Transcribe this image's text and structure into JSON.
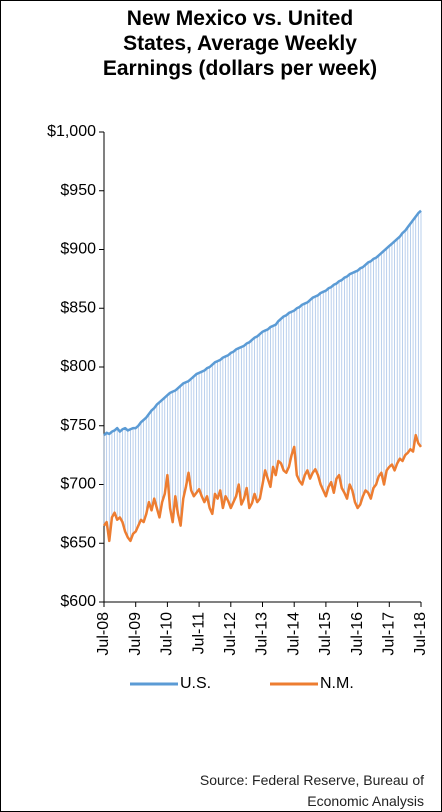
{
  "chart_data": {
    "type": "line",
    "title": "New Mexico vs. United States, Average Weekly Earnings  (dollars per week)",
    "source": "Source: Federal Reserve, Bureau of Economic Analysis",
    "categories": [
      "Jul-08",
      null,
      null,
      null,
      null,
      null,
      null,
      null,
      null,
      null,
      null,
      null,
      "Jul-09",
      null,
      null,
      null,
      null,
      null,
      null,
      null,
      null,
      null,
      null,
      null,
      "Jul-10",
      null,
      null,
      null,
      null,
      null,
      null,
      null,
      null,
      null,
      null,
      null,
      "Jul-11",
      null,
      null,
      null,
      null,
      null,
      null,
      null,
      null,
      null,
      null,
      null,
      "Jul-12",
      null,
      null,
      null,
      null,
      null,
      null,
      null,
      null,
      null,
      null,
      null,
      "Jul-13",
      null,
      null,
      null,
      null,
      null,
      null,
      null,
      null,
      null,
      null,
      null,
      "Jul-14",
      null,
      null,
      null,
      null,
      null,
      null,
      null,
      null,
      null,
      null,
      null,
      "Jul-15",
      null,
      null,
      null,
      null,
      null,
      null,
      null,
      null,
      null,
      null,
      null,
      "Jul-16",
      null,
      null,
      null,
      null,
      null,
      null,
      null,
      null,
      null,
      null,
      null,
      "Jul-17",
      null,
      null,
      null,
      null,
      null,
      null,
      null,
      null,
      null,
      null,
      null,
      "Jul-18"
    ],
    "series": [
      {
        "name": "U.S.",
        "color": "#5b9bd5",
        "values": [
          742,
          744,
          743,
          745,
          746,
          748,
          745,
          747,
          748,
          746,
          747,
          748,
          748,
          750,
          753,
          755,
          757,
          760,
          763,
          765,
          768,
          770,
          772,
          774,
          776,
          778,
          779,
          780,
          782,
          784,
          786,
          787,
          788,
          790,
          792,
          794,
          795,
          796,
          797,
          799,
          800,
          802,
          804,
          805,
          806,
          808,
          809,
          810,
          812,
          813,
          815,
          816,
          817,
          818,
          820,
          821,
          823,
          825,
          826,
          828,
          830,
          831,
          832,
          834,
          835,
          836,
          839,
          841,
          843,
          844,
          846,
          847,
          848,
          850,
          851,
          853,
          854,
          855,
          857,
          859,
          860,
          861,
          863,
          864,
          865,
          867,
          868,
          870,
          871,
          873,
          874,
          876,
          877,
          879,
          880,
          881,
          882,
          884,
          885,
          887,
          889,
          890,
          892,
          893,
          895,
          897,
          899,
          901,
          903,
          905,
          907,
          909,
          911,
          914,
          916,
          919,
          922,
          925,
          928,
          931,
          933
        ]
      },
      {
        "name": "N.M.",
        "color": "#ed7d31",
        "values": [
          665,
          668,
          652,
          672,
          676,
          670,
          672,
          668,
          660,
          655,
          652,
          658,
          660,
          665,
          670,
          668,
          675,
          685,
          678,
          688,
          680,
          672,
          685,
          692,
          708,
          680,
          668,
          690,
          675,
          665,
          688,
          698,
          710,
          695,
          690,
          693,
          696,
          690,
          685,
          690,
          680,
          675,
          692,
          688,
          695,
          680,
          690,
          686,
          680,
          685,
          690,
          700,
          683,
          688,
          697,
          680,
          684,
          692,
          685,
          688,
          700,
          712,
          705,
          698,
          715,
          708,
          720,
          718,
          712,
          710,
          715,
          725,
          732,
          708,
          703,
          700,
          708,
          712,
          705,
          710,
          713,
          708,
          700,
          695,
          690,
          698,
          702,
          693,
          705,
          708,
          697,
          693,
          688,
          700,
          695,
          685,
          680,
          683,
          690,
          695,
          693,
          688,
          697,
          700,
          707,
          710,
          700,
          712,
          715,
          717,
          712,
          718,
          722,
          720,
          725,
          727,
          730,
          728,
          742,
          735,
          732
        ]
      }
    ],
    "hilo_lines": true,
    "hilo_color": "#a9c4e8",
    "ylim": [
      600,
      1000
    ],
    "yticks": [
      {
        "value": 600,
        "label": "$600"
      },
      {
        "value": 650,
        "label": "$650"
      },
      {
        "value": 700,
        "label": "$700"
      },
      {
        "value": 750,
        "label": "$750"
      },
      {
        "value": 800,
        "label": "$800"
      },
      {
        "value": 850,
        "label": "$850"
      },
      {
        "value": 900,
        "label": "$900"
      },
      {
        "value": 950,
        "label": "$950"
      },
      {
        "value": 1000,
        "label": "$1,000"
      }
    ],
    "grid": false
  }
}
